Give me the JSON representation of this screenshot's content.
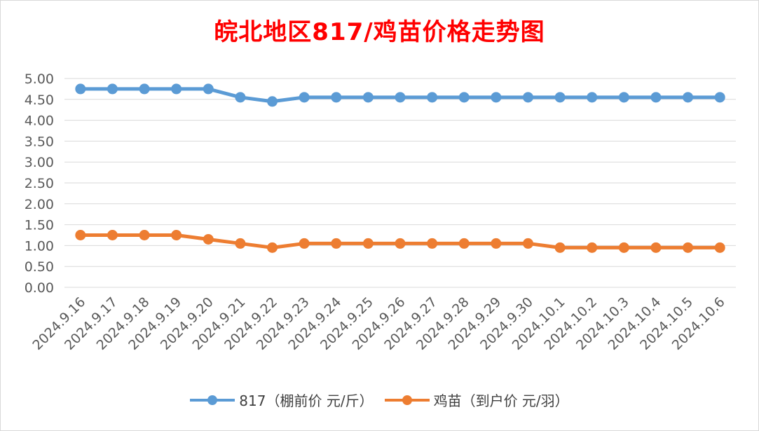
{
  "chart_data": {
    "type": "line",
    "title": "皖北地区817/鸡苗价格走势图",
    "title_color": "#ff0000",
    "categories": [
      "2024.9.16",
      "2024.9.17",
      "2024.9.18",
      "2024.9.19",
      "2024.9.20",
      "2024.9.21",
      "2024.9.22",
      "2024.9.23",
      "2024.9.24",
      "2024.9.25",
      "2024.9.26",
      "2024.9.27",
      "2024.9.28",
      "2024.9.29",
      "2024.9.30",
      "2024.10.1",
      "2024.10.2",
      "2024.10.3",
      "2024.10.4",
      "2024.10.5",
      "2024.10.6"
    ],
    "series": [
      {
        "name": "817（棚前价 元/斤）",
        "color": "#5b9bd5",
        "values": [
          4.75,
          4.75,
          4.75,
          4.75,
          4.75,
          4.55,
          4.45,
          4.55,
          4.55,
          4.55,
          4.55,
          4.55,
          4.55,
          4.55,
          4.55,
          4.55,
          4.55,
          4.55,
          4.55,
          4.55,
          4.55
        ]
      },
      {
        "name": "鸡苗（到户价 元/羽）",
        "color": "#ed7d31",
        "values": [
          1.25,
          1.25,
          1.25,
          1.25,
          1.15,
          1.05,
          0.95,
          1.05,
          1.05,
          1.05,
          1.05,
          1.05,
          1.05,
          1.05,
          1.05,
          0.95,
          0.95,
          0.95,
          0.95,
          0.95,
          0.95
        ]
      }
    ],
    "ylim": [
      0,
      5
    ],
    "yticks": [
      "0.00",
      "0.50",
      "1.00",
      "1.50",
      "2.00",
      "2.50",
      "3.00",
      "3.50",
      "4.00",
      "4.50",
      "5.00"
    ],
    "grid": true,
    "legend": "bottom"
  }
}
